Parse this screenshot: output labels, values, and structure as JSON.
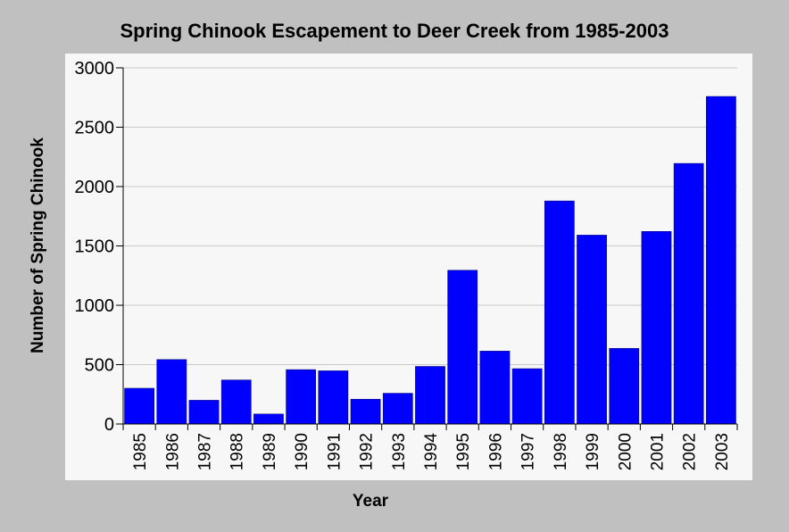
{
  "chart_data": {
    "type": "bar",
    "title": "Spring Chinook Escapement to Deer Creek from 1985-2003",
    "xlabel": "Year",
    "ylabel": "Number of Spring Chinook",
    "categories": [
      "1985",
      "1986",
      "1987",
      "1988",
      "1989",
      "1990",
      "1991",
      "1992",
      "1993",
      "1994",
      "1995",
      "1996",
      "1997",
      "1998",
      "1999",
      "2000",
      "2001",
      "2002",
      "2003"
    ],
    "values": [
      301,
      543,
      200,
      371,
      84,
      458,
      448,
      209,
      259,
      485,
      1295,
      614,
      466,
      1879,
      1591,
      637,
      1622,
      2195,
      2759
    ],
    "ylim": [
      0,
      3000
    ],
    "yticks": [
      0,
      500,
      1000,
      1500,
      2000,
      2500,
      3000
    ],
    "grid": true,
    "legend": "none",
    "colors": {
      "bar": "#0000ff",
      "bar_stroke": "#000066",
      "page_background": "#c0c0c0",
      "plot_background": "#f7f7f7",
      "grid": "#c8c8c8",
      "axis": "#000000",
      "text": "#000000"
    }
  }
}
